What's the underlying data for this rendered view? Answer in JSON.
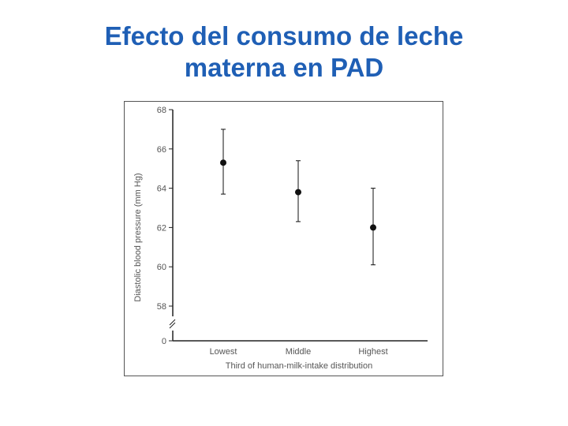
{
  "slide": {
    "title_line1": "Efecto del consumo de leche",
    "title_line2": "materna en PAD"
  },
  "colors": {
    "title": "#1f5fb5",
    "axis": "#222222",
    "tick_label": "#555555",
    "marker": "#111111"
  },
  "chart_data": {
    "type": "scatter",
    "categories": [
      "Lowest",
      "Middle",
      "Highest"
    ],
    "values": [
      65.3,
      63.8,
      62.0
    ],
    "error_low": [
      63.7,
      62.3,
      60.1
    ],
    "error_high": [
      67.0,
      65.4,
      64.0
    ],
    "xlabel": "Third of human-milk-intake distribution",
    "ylabel": "Diastolic blood pressure (mm Hg)",
    "yticks": [
      {
        "value": 68,
        "label": "68"
      },
      {
        "value": 66,
        "label": "66"
      },
      {
        "value": 64,
        "label": "64"
      },
      {
        "value": 62,
        "label": "62"
      },
      {
        "value": 60,
        "label": "60"
      },
      {
        "value": 58,
        "label": "58"
      },
      {
        "value": 0,
        "label": "0"
      }
    ],
    "ylim": [
      58,
      68
    ],
    "axis_break": true,
    "grid": false,
    "legend": "none"
  }
}
